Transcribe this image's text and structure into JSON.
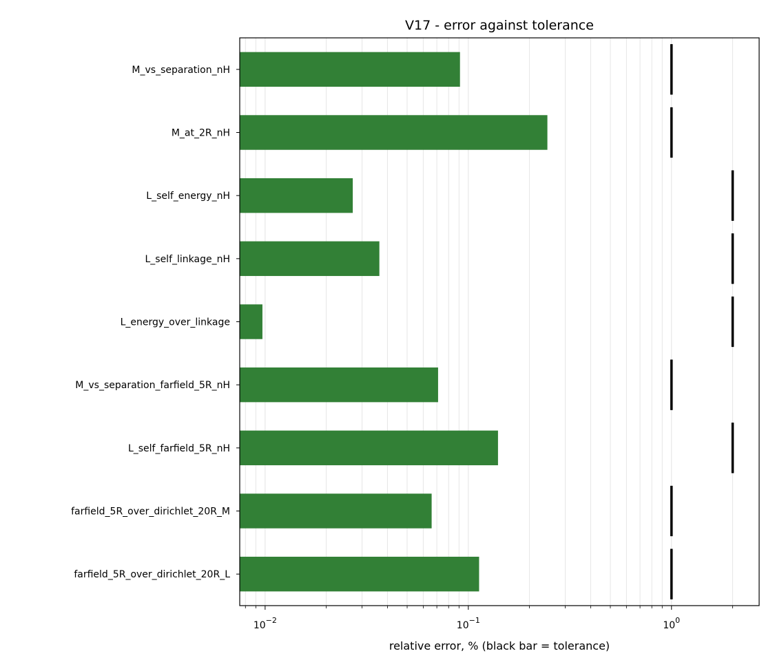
{
  "chart_data": {
    "type": "bar",
    "orientation": "horizontal",
    "title": "V17 - error against tolerance",
    "xlabel": "relative error, % (black bar = tolerance)",
    "ylabel": "",
    "x_scale": "log",
    "xlim": [
      0.0075,
      2.7
    ],
    "x_major_ticks": [
      0.01,
      0.1,
      1
    ],
    "x_major_tick_labels": [
      {
        "base": "10",
        "exp": "−2"
      },
      {
        "base": "10",
        "exp": "−1"
      },
      {
        "base": "10",
        "exp": "0"
      }
    ],
    "grid": "vertical, major and minor",
    "categories": [
      "M_vs_separation_nH",
      "M_at_2R_nH",
      "L_self_energy_nH",
      "L_self_linkage_nH",
      "L_energy_over_linkage",
      "M_vs_separation_farfield_5R_nH",
      "L_self_farfield_5R_nH",
      "farfield_5R_over_dirichlet_20R_M",
      "farfield_5R_over_dirichlet_20R_L"
    ],
    "series": [
      {
        "values": [
          0.091,
          0.245,
          0.027,
          0.0365,
          0.0097,
          0.071,
          0.14,
          0.066,
          0.113
        ],
        "color": "#2e7d32"
      }
    ],
    "tolerances": [
      1,
      1,
      2,
      2,
      2,
      1,
      2,
      1,
      1
    ],
    "tolerance_color": "#000000"
  }
}
